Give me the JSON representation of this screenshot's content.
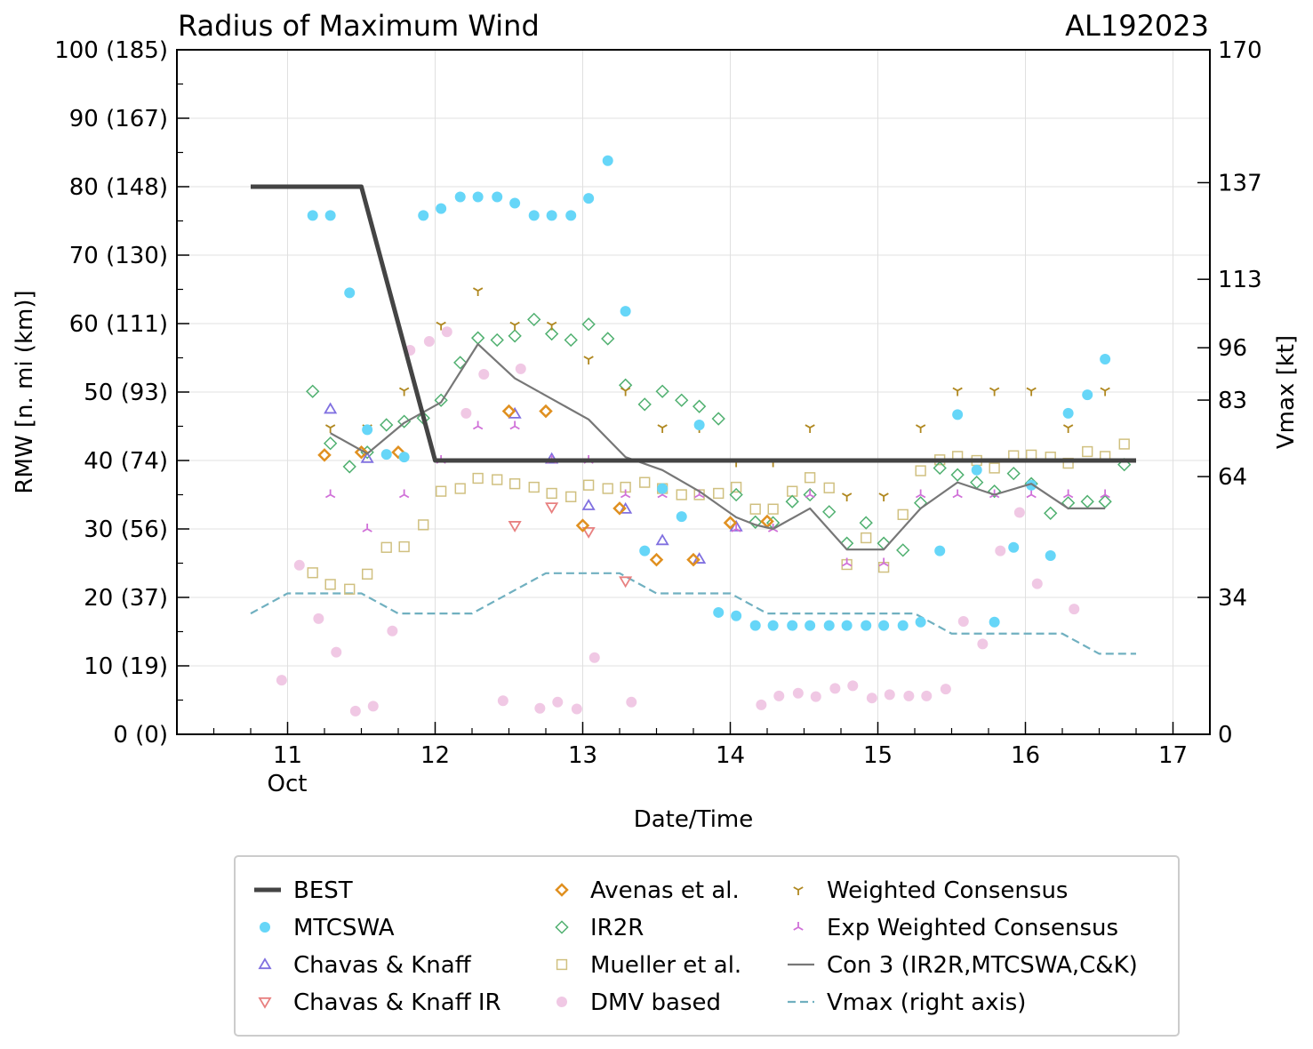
{
  "chart_data": {
    "type": "scatter",
    "title": "Radius of Maximum Wind",
    "title_right": "AL192023",
    "xlabel": "Date/Time",
    "ylabel": "RMW [n. mi (km)]",
    "ylabel_right": "Vmax [kt]",
    "xlim": [
      10.25,
      17.25
    ],
    "ylim": [
      0,
      100
    ],
    "ylim_right": [
      0,
      170
    ],
    "x_ticks": [
      11,
      12,
      13,
      14,
      15,
      16,
      17
    ],
    "x_tick_labels": [
      "11",
      "12",
      "13",
      "14",
      "15",
      "16",
      "17"
    ],
    "x_sub_label": "Oct",
    "y_ticks": [
      0,
      10,
      20,
      30,
      40,
      50,
      60,
      70,
      80,
      90,
      100
    ],
    "y_tick_labels": [
      "0 (0)",
      "10 (19)",
      "20 (37)",
      "30 (56)",
      "40 (74)",
      "50 (93)",
      "60 (111)",
      "70 (130)",
      "80 (148)",
      "90 (167)",
      "100 (185)"
    ],
    "y_ticks_right": [
      0,
      34,
      64,
      83,
      96,
      113,
      137,
      170
    ],
    "y_tick_labels_right": [
      "0",
      "34",
      "64",
      "83",
      "96",
      "113",
      "137",
      "170"
    ],
    "grid": true,
    "legend_position": "bottom",
    "series": [
      {
        "name": "BEST",
        "kind": "line",
        "color": "#444444",
        "x": [
          10.75,
          11.5,
          12.0,
          16.75
        ],
        "y": [
          80,
          80,
          40,
          40
        ]
      },
      {
        "name": "MTCSWA",
        "kind": "circle",
        "color": "#66d6f8",
        "x": [
          11.17,
          11.29,
          11.42,
          11.54,
          11.67,
          11.79,
          11.92,
          12.04,
          12.17,
          12.29,
          12.42,
          12.54,
          12.67,
          12.79,
          12.92,
          13.04,
          13.17,
          13.29,
          13.42,
          13.54,
          13.67,
          13.79,
          13.92,
          14.04,
          14.17,
          14.29,
          14.42,
          14.54,
          14.67,
          14.79,
          14.92,
          15.04,
          15.17,
          15.29,
          15.42,
          15.54,
          15.67,
          15.79,
          15.92,
          16.04,
          16.17,
          16.29,
          16.42,
          16.54
        ],
        "y": [
          75.8,
          75.8,
          64.5,
          44.5,
          40.9,
          40.5,
          75.8,
          76.8,
          78.5,
          78.5,
          78.5,
          77.6,
          75.8,
          75.8,
          75.8,
          78.3,
          83.8,
          61.8,
          26.8,
          35.9,
          31.8,
          45.2,
          17.8,
          17.3,
          15.9,
          15.9,
          15.9,
          15.9,
          15.9,
          15.9,
          15.9,
          15.9,
          15.9,
          16.4,
          26.8,
          46.7,
          38.6,
          16.4,
          27.3,
          36.4,
          26.1,
          46.9,
          49.6,
          54.8
        ]
      },
      {
        "name": "Chavas & Knaff",
        "kind": "tri_up",
        "color": "#8070e0",
        "x": [
          11.29,
          11.54,
          12.54,
          12.79,
          13.04,
          13.29,
          13.54,
          13.79,
          14.04
        ],
        "y": [
          47.5,
          40.3,
          46.8,
          40.2,
          33.4,
          32.9,
          28.3,
          25.6,
          30.3
        ]
      },
      {
        "name": "Chavas & Knaff IR",
        "kind": "tri_down",
        "color": "#e88080",
        "x": [
          12.54,
          12.79,
          13.04,
          13.29
        ],
        "y": [
          30.5,
          33.2,
          29.6,
          22.4
        ]
      },
      {
        "name": "Avenas et al.",
        "kind": "diamond",
        "color": "#e09020",
        "x": [
          11.25,
          11.5,
          11.75,
          12.5,
          12.75,
          13.0,
          13.25,
          13.5,
          13.75,
          14.0,
          14.25
        ],
        "y": [
          40.8,
          41.2,
          41.2,
          47.2,
          47.2,
          30.5,
          33.0,
          25.5,
          25.5,
          30.9,
          31.1
        ]
      },
      {
        "name": "IR2R",
        "kind": "diamond_open",
        "color": "#50b070",
        "x": [
          11.17,
          11.29,
          11.42,
          11.54,
          11.67,
          11.79,
          11.92,
          12.04,
          12.17,
          12.29,
          12.42,
          12.54,
          12.67,
          12.79,
          12.92,
          13.04,
          13.17,
          13.29,
          13.42,
          13.54,
          13.67,
          13.79,
          13.92,
          14.04,
          14.17,
          14.29,
          14.42,
          14.54,
          14.67,
          14.79,
          14.92,
          15.04,
          15.17,
          15.29,
          15.42,
          15.54,
          15.67,
          15.79,
          15.92,
          16.04,
          16.17,
          16.29,
          16.42,
          16.54,
          16.67
        ],
        "y": [
          50.1,
          42.5,
          39.1,
          41.2,
          45.2,
          45.7,
          46.2,
          48.8,
          54.3,
          57.9,
          57.6,
          58.2,
          60.6,
          58.5,
          57.6,
          59.9,
          57.8,
          51.0,
          48.2,
          50.1,
          48.8,
          47.9,
          46.1,
          35.0,
          31.0,
          30.9,
          34.0,
          35.0,
          32.5,
          27.9,
          30.9,
          27.9,
          26.9,
          33.8,
          38.9,
          37.9,
          36.8,
          35.5,
          38.1,
          36.6,
          32.3,
          33.8,
          34.0,
          34.0,
          39.4
        ]
      },
      {
        "name": "Mueller et al.",
        "kind": "square",
        "color": "#d0c080",
        "x": [
          11.17,
          11.29,
          11.42,
          11.54,
          11.67,
          11.79,
          11.92,
          12.04,
          12.17,
          12.29,
          12.42,
          12.54,
          12.67,
          12.79,
          12.92,
          13.04,
          13.17,
          13.29,
          13.42,
          13.54,
          13.67,
          13.79,
          13.92,
          14.04,
          14.17,
          14.29,
          14.42,
          14.54,
          14.67,
          14.79,
          14.92,
          15.04,
          15.17,
          15.29,
          15.42,
          15.54,
          15.67,
          15.79,
          15.92,
          16.04,
          16.17,
          16.29,
          16.42,
          16.54,
          16.67
        ],
        "y": [
          23.6,
          21.9,
          21.2,
          23.4,
          27.3,
          27.4,
          30.6,
          35.5,
          35.9,
          37.4,
          37.2,
          36.6,
          36.1,
          35.2,
          34.7,
          36.4,
          35.9,
          36.1,
          36.8,
          35.9,
          35.0,
          35.0,
          35.2,
          36.1,
          32.9,
          32.9,
          35.5,
          37.5,
          36.0,
          24.8,
          28.7,
          24.4,
          32.1,
          38.5,
          40.1,
          40.6,
          40.0,
          38.9,
          40.7,
          40.8,
          40.5,
          39.6,
          41.3,
          40.6,
          42.4
        ]
      },
      {
        "name": "DMV based",
        "kind": "circle_light",
        "color": "#f0c8e4",
        "x": [
          10.96,
          11.08,
          11.21,
          11.33,
          11.46,
          11.58,
          11.71,
          11.83,
          11.96,
          12.08,
          12.21,
          12.33,
          12.46,
          12.58,
          12.71,
          12.83,
          12.96,
          13.08,
          13.33,
          14.21,
          14.33,
          14.46,
          14.58,
          14.71,
          14.83,
          14.96,
          15.08,
          15.21,
          15.33,
          15.46,
          15.58,
          15.71,
          15.83,
          15.96,
          16.08,
          16.33
        ],
        "y": [
          7.9,
          24.7,
          16.9,
          12.0,
          3.4,
          4.1,
          15.1,
          56.1,
          57.4,
          58.8,
          46.9,
          52.6,
          4.9,
          53.4,
          3.8,
          4.7,
          3.7,
          11.2,
          4.7,
          4.3,
          5.6,
          6.0,
          5.5,
          6.7,
          7.1,
          5.3,
          5.8,
          5.6,
          5.6,
          6.6,
          16.5,
          13.2,
          26.8,
          32.4,
          22.0,
          18.3
        ]
      },
      {
        "name": "Weighted Consensus",
        "kind": "tri_y",
        "color": "#b08820",
        "x": [
          11.29,
          11.54,
          11.79,
          12.04,
          12.29,
          12.54,
          12.79,
          13.04,
          13.29,
          13.54,
          13.79,
          14.04,
          14.29,
          14.54,
          14.79,
          15.04,
          15.29,
          15.54,
          15.79,
          16.04,
          16.29,
          16.54
        ],
        "y": [
          44.8,
          44.8,
          50.2,
          59.8,
          64.8,
          59.8,
          59.8,
          54.8,
          50.2,
          44.8,
          44.8,
          39.8,
          39.8,
          44.8,
          34.8,
          34.8,
          44.8,
          50.2,
          50.2,
          50.2,
          44.8,
          50.2
        ]
      },
      {
        "name": "Exp Weighted Consensus",
        "kind": "tri_y_inv",
        "color": "#d070d8",
        "x": [
          11.29,
          11.54,
          11.79,
          12.04,
          12.29,
          12.54,
          12.79,
          13.04,
          13.29,
          13.54,
          13.79,
          14.04,
          14.29,
          14.54,
          14.79,
          15.04,
          15.29,
          15.54,
          15.79,
          16.04,
          16.29,
          16.54
        ],
        "y": [
          35.0,
          30.0,
          35.0,
          40.0,
          45.0,
          45.0,
          40.0,
          40.0,
          35.0,
          35.0,
          35.0,
          30.0,
          30.0,
          35.0,
          25.0,
          25.0,
          35.0,
          35.0,
          35.0,
          35.0,
          35.0,
          35.0
        ]
      },
      {
        "name": "Con 3 (IR2R,MTCSWA,C&K)",
        "kind": "line",
        "color": "#777777",
        "x": [
          11.29,
          11.54,
          11.79,
          12.04,
          12.29,
          12.54,
          12.79,
          13.04,
          13.29,
          13.54,
          13.79,
          14.04,
          14.17,
          14.29,
          14.54,
          14.79,
          15.04,
          15.29,
          15.54,
          15.79,
          16.04,
          16.29,
          16.54
        ],
        "y": [
          44.0,
          41.0,
          45.5,
          48.5,
          57.0,
          52.0,
          49.0,
          46.0,
          40.5,
          38.6,
          35.5,
          31.7,
          30.6,
          30.0,
          33.0,
          27.0,
          27.0,
          33.0,
          36.8,
          35.0,
          36.6,
          33.0,
          33.0
        ]
      },
      {
        "name": "Vmax (right axis)",
        "kind": "dashed",
        "color": "#70b0c0",
        "x": [
          10.75,
          11.0,
          11.5,
          11.75,
          12.25,
          12.75,
          13.25,
          13.5,
          14.0,
          14.25,
          15.25,
          15.5,
          16.25,
          16.5,
          16.75
        ],
        "y": [
          30,
          35,
          35,
          30,
          30,
          40,
          40,
          35,
          35,
          30,
          30,
          25,
          25,
          20,
          20
        ]
      }
    ]
  }
}
